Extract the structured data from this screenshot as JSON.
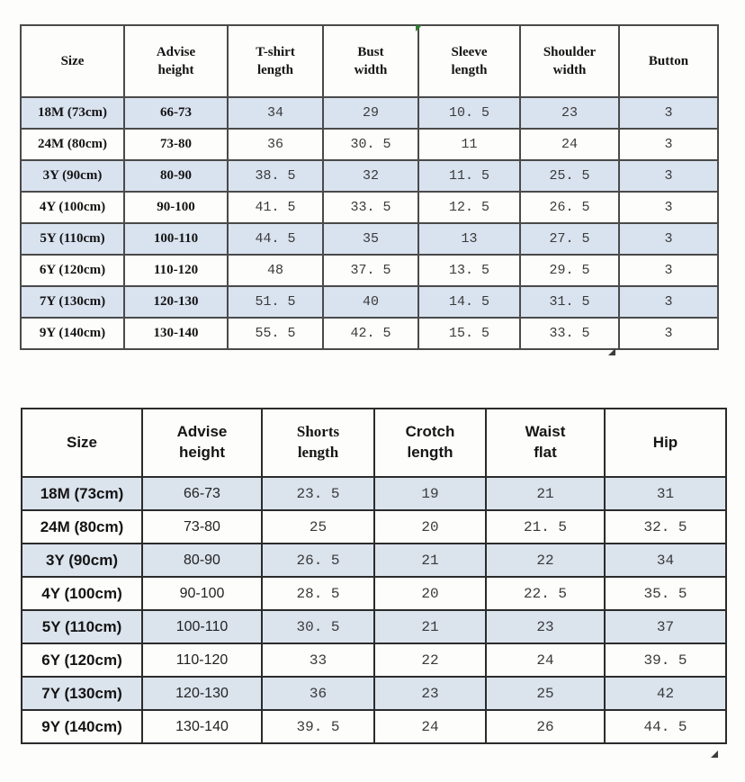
{
  "colors": {
    "table1_stripe": "#d9e2ef",
    "table2_stripe": "#dbe3ed",
    "table1_border": "#4a4a4a",
    "table2_border": "#2b2b2b",
    "comment_marker": "#2e7d32"
  },
  "tables": [
    {
      "stripe_color": "#d9e2ef",
      "headers": [
        "Size",
        "Advise\nheight",
        "T-shirt\nlength",
        "Bust\nwidth",
        "Sleeve\nlength",
        "Shoulder\nwidth",
        "Button"
      ],
      "rows": [
        [
          "18M (73cm)",
          "66-73",
          "34",
          "29",
          "10. 5",
          "23",
          "3"
        ],
        [
          "24M (80cm)",
          "73-80",
          "36",
          "30. 5",
          "11",
          "24",
          "3"
        ],
        [
          "3Y (90cm)",
          "80-90",
          "38. 5",
          "32",
          "11. 5",
          "25. 5",
          "3"
        ],
        [
          "4Y (100cm)",
          "90-100",
          "41. 5",
          "33. 5",
          "12. 5",
          "26. 5",
          "3"
        ],
        [
          "5Y (110cm)",
          "100-110",
          "44. 5",
          "35",
          "13",
          "27. 5",
          "3"
        ],
        [
          "6Y (120cm)",
          "110-120",
          "48",
          "37. 5",
          "13. 5",
          "29. 5",
          "3"
        ],
        [
          "7Y (130cm)",
          "120-130",
          "51. 5",
          "40",
          "14. 5",
          "31. 5",
          "3"
        ],
        [
          "9Y (140cm)",
          "130-140",
          "55. 5",
          "42. 5",
          "15. 5",
          "33. 5",
          "3"
        ]
      ]
    },
    {
      "stripe_color": "#dbe3ed",
      "headers": [
        "Size",
        "Advise\nheight",
        "Shorts\nlength",
        "Crotch\nlength",
        "Waist\nflat",
        "Hip"
      ],
      "rows": [
        [
          "18M (73cm)",
          "66-73",
          "23. 5",
          "19",
          "21",
          "31"
        ],
        [
          "24M (80cm)",
          "73-80",
          "25",
          "20",
          "21. 5",
          "32. 5"
        ],
        [
          "3Y (90cm)",
          "80-90",
          "26. 5",
          "21",
          "22",
          "34"
        ],
        [
          "4Y (100cm)",
          "90-100",
          "28. 5",
          "20",
          "22. 5",
          "35. 5"
        ],
        [
          "5Y (110cm)",
          "100-110",
          "30. 5",
          "21",
          "23",
          "37"
        ],
        [
          "6Y (120cm)",
          "110-120",
          "33",
          "22",
          "24",
          "39. 5"
        ],
        [
          "7Y (130cm)",
          "120-130",
          "36",
          "23",
          "25",
          "42"
        ],
        [
          "9Y (140cm)",
          "130-140",
          "39. 5",
          "24",
          "26",
          "44. 5"
        ]
      ]
    }
  ]
}
